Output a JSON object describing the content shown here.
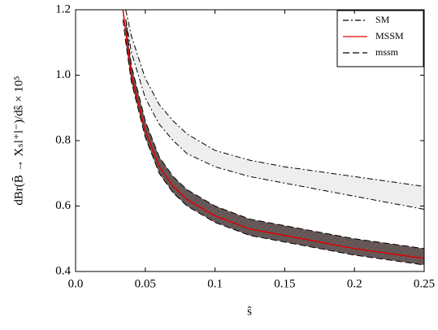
{
  "chart_data": {
    "type": "band-line",
    "x_label": "ŝ",
    "y_label": "dBr(B̄ → Xₛl⁺l⁻)/dŝ × 10⁵",
    "x": [
      0.034,
      0.036,
      0.04,
      0.05,
      0.06,
      0.07,
      0.08,
      0.1,
      0.125,
      0.15,
      0.175,
      0.2,
      0.225,
      0.25
    ],
    "series": [
      {
        "name": "SM",
        "color": "#000000",
        "fill": "#eeeeee",
        "dash": "7 3 2 3",
        "upper": [
          null,
          1.2,
          1.12,
          0.99,
          0.91,
          0.86,
          0.82,
          0.77,
          0.74,
          0.72,
          0.705,
          0.69,
          0.675,
          0.66
        ],
        "lower": [
          null,
          1.17,
          1.07,
          0.93,
          0.85,
          0.8,
          0.76,
          0.72,
          0.69,
          0.67,
          0.65,
          0.63,
          0.61,
          0.59
        ]
      },
      {
        "name": "MSSM",
        "color": "#e00000",
        "values": [
          1.2,
          1.13,
          1.0,
          0.83,
          0.72,
          0.66,
          0.62,
          0.57,
          0.53,
          0.51,
          0.49,
          0.47,
          0.455,
          0.44
        ]
      },
      {
        "name": "mssm",
        "color": "#000000",
        "fill": "#5a5a5a",
        "dash": "8 4",
        "upper": [
          null,
          1.17,
          1.03,
          0.86,
          0.75,
          0.69,
          0.65,
          0.6,
          0.56,
          0.54,
          0.52,
          0.5,
          0.485,
          0.47
        ],
        "lower": [
          1.17,
          1.1,
          0.98,
          0.81,
          0.7,
          0.64,
          0.6,
          0.55,
          0.51,
          0.49,
          0.47,
          0.45,
          0.435,
          0.42
        ]
      }
    ],
    "xlim": [
      0,
      0.25
    ],
    "ylim": [
      0.4,
      1.2
    ],
    "xticks": [
      {
        "value": 0,
        "label": "0.0"
      },
      0.05,
      0.1,
      0.15,
      0.2,
      0.25
    ],
    "yticks": [
      0.4,
      0.6,
      0.8,
      {
        "value": 1,
        "label": "1.0"
      },
      1.2
    ],
    "legend": "upper right"
  }
}
